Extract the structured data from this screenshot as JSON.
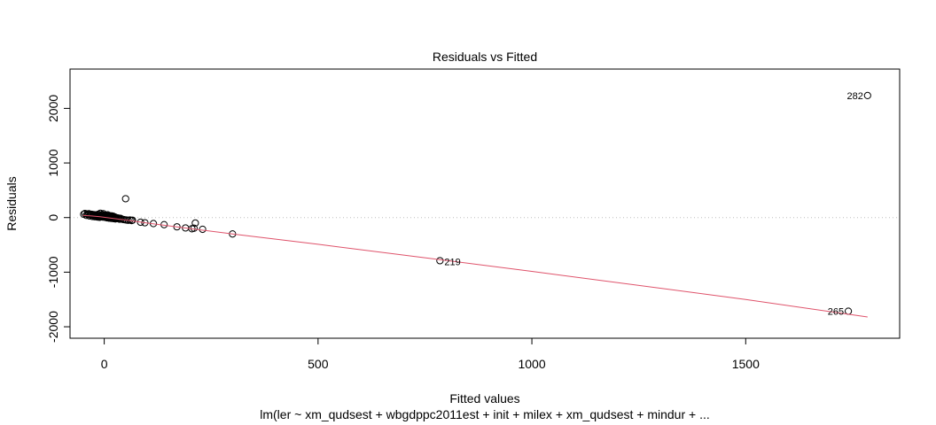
{
  "chart_data": {
    "type": "scatter",
    "title": "Residuals vs Fitted",
    "xlabel": "Fitted values",
    "ylabel": "Residuals",
    "subtitle": "lm(ler ~ xm_qudsest + wbgdppc2011est + init + milex + xm_qudsest + mindur + ...",
    "xlim": [
      -80,
      1860
    ],
    "ylim": [
      -2210,
      2720
    ],
    "xticks": [
      0,
      500,
      1000,
      1500
    ],
    "yticks": [
      -2000,
      -1000,
      0,
      1000,
      2000
    ],
    "zero_line": true,
    "point_color": "#000000",
    "smooth_color": "#df536b",
    "zero_line_color": "#bebebe",
    "points": [
      [
        -48,
        60
      ],
      [
        -45,
        75
      ],
      [
        -42,
        40
      ],
      [
        -40,
        65
      ],
      [
        -38,
        55
      ],
      [
        -36,
        70
      ],
      [
        -35,
        30
      ],
      [
        -33,
        50
      ],
      [
        -31,
        45
      ],
      [
        -30,
        60
      ],
      [
        -28,
        20
      ],
      [
        -27,
        40
      ],
      [
        -25,
        55
      ],
      [
        -24,
        30
      ],
      [
        -22,
        15
      ],
      [
        -21,
        35
      ],
      [
        -20,
        50
      ],
      [
        -18,
        25
      ],
      [
        -17,
        45
      ],
      [
        -16,
        10
      ],
      [
        -15,
        30
      ],
      [
        -14,
        60
      ],
      [
        -13,
        20
      ],
      [
        -12,
        40
      ],
      [
        -11,
        5
      ],
      [
        -10,
        25
      ],
      [
        -9,
        80
      ],
      [
        -8,
        45
      ],
      [
        -7,
        15
      ],
      [
        -6,
        35
      ],
      [
        -5,
        55
      ],
      [
        -4,
        10
      ],
      [
        -3,
        30
      ],
      [
        -2,
        70
      ],
      [
        -1,
        20
      ],
      [
        0,
        40
      ],
      [
        1,
        5
      ],
      [
        2,
        25
      ],
      [
        3,
        45
      ],
      [
        4,
        15
      ],
      [
        5,
        35
      ],
      [
        6,
        -5
      ],
      [
        7,
        20
      ],
      [
        8,
        50
      ],
      [
        9,
        10
      ],
      [
        10,
        30
      ],
      [
        11,
        -10
      ],
      [
        12,
        15
      ],
      [
        13,
        35
      ],
      [
        14,
        0
      ],
      [
        15,
        20
      ],
      [
        16,
        -15
      ],
      [
        17,
        10
      ],
      [
        18,
        30
      ],
      [
        19,
        -5
      ],
      [
        20,
        15
      ],
      [
        21,
        25
      ],
      [
        22,
        -20
      ],
      [
        23,
        5
      ],
      [
        24,
        -10
      ],
      [
        25,
        10
      ],
      [
        26,
        -25
      ],
      [
        27,
        0
      ],
      [
        28,
        -15
      ],
      [
        30,
        -5
      ],
      [
        32,
        -20
      ],
      [
        34,
        -10
      ],
      [
        36,
        -30
      ],
      [
        38,
        -15
      ],
      [
        40,
        -25
      ],
      [
        44,
        -35
      ],
      [
        48,
        -40
      ],
      [
        50,
        345
      ],
      [
        52,
        -45
      ],
      [
        56,
        -50
      ],
      [
        60,
        -45
      ],
      [
        64,
        -55
      ],
      [
        66,
        -48
      ],
      [
        85,
        -85
      ],
      [
        95,
        -95
      ],
      [
        115,
        -110
      ],
      [
        140,
        -130
      ],
      [
        170,
        -170
      ],
      [
        190,
        -190
      ],
      [
        205,
        -205
      ],
      [
        210,
        -195
      ],
      [
        213,
        -100
      ],
      [
        230,
        -215
      ],
      [
        300,
        -300
      ],
      [
        785,
        -790
      ],
      [
        1740,
        -1715
      ],
      [
        1785,
        2235
      ]
    ],
    "point_labels": [
      {
        "text": "282",
        "x": 1785,
        "y": 2235
      },
      {
        "text": "219",
        "x": 785,
        "y": -790
      },
      {
        "text": "265",
        "x": 1740,
        "y": -1715
      }
    ],
    "smooth_line": [
      [
        -50,
        40
      ],
      [
        -30,
        30
      ],
      [
        -10,
        15
      ],
      [
        10,
        -5
      ],
      [
        30,
        -25
      ],
      [
        60,
        -55
      ],
      [
        100,
        -100
      ],
      [
        200,
        -200
      ],
      [
        300,
        -300
      ],
      [
        500,
        -490
      ],
      [
        785,
        -770
      ],
      [
        1000,
        -985
      ],
      [
        1500,
        -1500
      ],
      [
        1785,
        -1820
      ]
    ]
  }
}
